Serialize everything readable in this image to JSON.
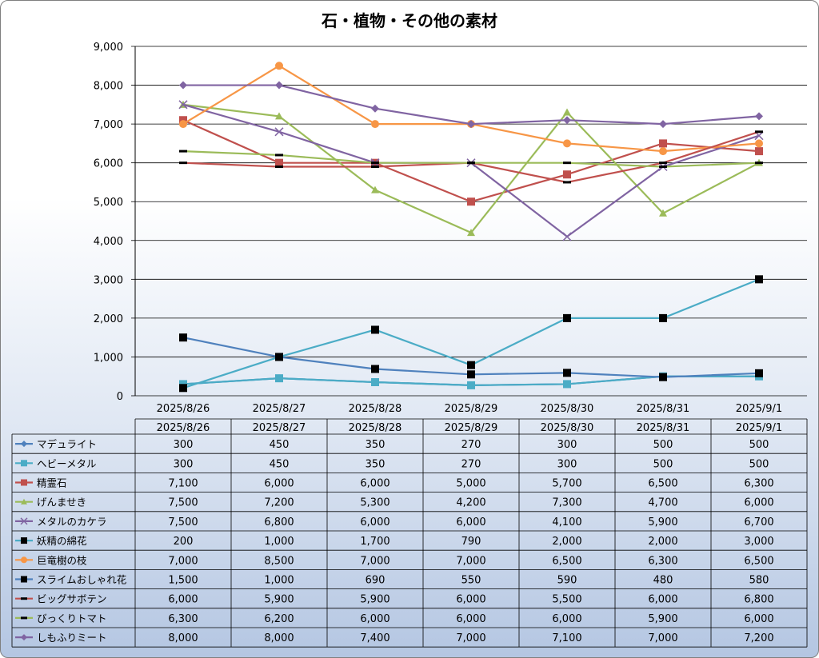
{
  "chart_data": {
    "type": "line",
    "title": "石・植物・その他の素材",
    "categories": [
      "2025/8/26",
      "2025/8/27",
      "2025/8/28",
      "2025/8/29",
      "2025/8/30",
      "2025/8/31",
      "2025/9/1"
    ],
    "ylim": [
      0,
      9000
    ],
    "yticks": [
      "0",
      "1,000",
      "2,000",
      "3,000",
      "4,000",
      "5,000",
      "6,000",
      "7,000",
      "8,000",
      "9,000"
    ],
    "grid": true,
    "data_table": true,
    "series": [
      {
        "name": "マデュライト",
        "values": [
          300,
          450,
          350,
          270,
          300,
          500,
          500
        ],
        "labels": [
          "300",
          "450",
          "350",
          "270",
          "300",
          "500",
          "500"
        ],
        "color": "#4f81bd",
        "marker": "diamond"
      },
      {
        "name": "ヘビーメタル",
        "values": [
          300,
          450,
          350,
          270,
          300,
          500,
          500
        ],
        "labels": [
          "300",
          "450",
          "350",
          "270",
          "300",
          "500",
          "500"
        ],
        "color": "#4bacc6",
        "marker": "square"
      },
      {
        "name": "精霊石",
        "values": [
          7100,
          6000,
          6000,
          5000,
          5700,
          6500,
          6300
        ],
        "labels": [
          "7,100",
          "6,000",
          "6,000",
          "5,000",
          "5,700",
          "6,500",
          "6,300"
        ],
        "color": "#c0504d",
        "marker": "square"
      },
      {
        "name": "げんませき",
        "values": [
          7500,
          7200,
          5300,
          4200,
          7300,
          4700,
          6000
        ],
        "labels": [
          "7,500",
          "7,200",
          "5,300",
          "4,200",
          "7,300",
          "4,700",
          "6,000"
        ],
        "color": "#9bbb59",
        "marker": "triangle"
      },
      {
        "name": "メタルのカケラ",
        "values": [
          7500,
          6800,
          6000,
          6000,
          4100,
          5900,
          6700
        ],
        "labels": [
          "7,500",
          "6,800",
          "6,000",
          "6,000",
          "4,100",
          "5,900",
          "6,700"
        ],
        "color": "#8064a2",
        "marker": "x"
      },
      {
        "name": "妖精の綿花",
        "values": [
          200,
          1000,
          1700,
          790,
          2000,
          2000,
          3000
        ],
        "labels": [
          "200",
          "1,000",
          "1,700",
          "790",
          "2,000",
          "2,000",
          "3,000"
        ],
        "color": "#4bacc6",
        "marker": "blacksquare"
      },
      {
        "name": "巨竜樹の枝",
        "values": [
          7000,
          8500,
          7000,
          7000,
          6500,
          6300,
          6500
        ],
        "labels": [
          "7,000",
          "8,500",
          "7,000",
          "7,000",
          "6,500",
          "6,300",
          "6,500"
        ],
        "color": "#f79646",
        "marker": "circle"
      },
      {
        "name": "スライムおしゃれ花",
        "values": [
          1500,
          1000,
          690,
          550,
          590,
          480,
          580
        ],
        "labels": [
          "1,500",
          "1,000",
          "690",
          "550",
          "590",
          "480",
          "580"
        ],
        "color": "#4f81bd",
        "marker": "blacksquare"
      },
      {
        "name": "ビッグサボテン",
        "values": [
          6000,
          5900,
          5900,
          6000,
          5500,
          6000,
          6800
        ],
        "labels": [
          "6,000",
          "5,900",
          "5,900",
          "6,000",
          "5,500",
          "6,000",
          "6,800"
        ],
        "color": "#c0504d",
        "marker": "dash"
      },
      {
        "name": "びっくりトマト",
        "values": [
          6300,
          6200,
          6000,
          6000,
          6000,
          5900,
          6000
        ],
        "labels": [
          "6,300",
          "6,200",
          "6,000",
          "6,000",
          "6,000",
          "5,900",
          "6,000"
        ],
        "color": "#9bbb59",
        "marker": "dash"
      },
      {
        "name": "しもふりミート",
        "values": [
          8000,
          8000,
          7400,
          7000,
          7100,
          7000,
          7200
        ],
        "labels": [
          "8,000",
          "8,000",
          "7,400",
          "7,000",
          "7,100",
          "7,000",
          "7,200"
        ],
        "color": "#8064a2",
        "marker": "diamond"
      }
    ]
  }
}
